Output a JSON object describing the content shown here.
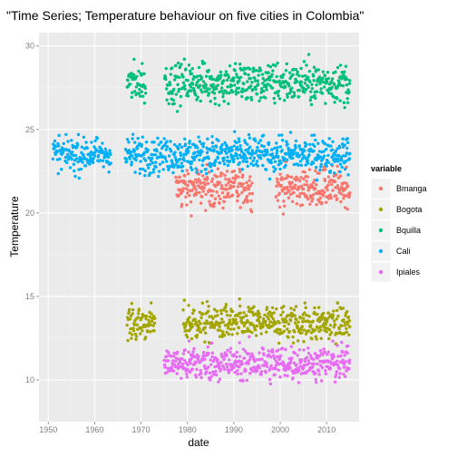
{
  "chart_data": {
    "type": "scatter",
    "title": "\"Time Series; Temperature behaviour on five cities in Colombia\"",
    "xlabel": "date",
    "ylabel": "Temperature",
    "xlim": [
      1948,
      2017
    ],
    "ylim": [
      7.5,
      30.8
    ],
    "x_ticks": [
      1950,
      1960,
      1970,
      1980,
      1990,
      2000,
      2010
    ],
    "y_ticks": [
      10,
      15,
      20,
      25,
      30
    ],
    "grid": true,
    "legend": {
      "title": "variable",
      "placement": "right"
    },
    "series": [
      {
        "name": "Bmanga",
        "color": "#F8766D",
        "x_range": [
          1977.5,
          2015
        ],
        "mean": 21.5,
        "spread": 0.55,
        "gaps": [
          [
            1994,
            1999
          ]
        ]
      },
      {
        "name": "Bogota",
        "color": "#A3A500",
        "x_range": [
          1967,
          2015
        ],
        "mean": 13.4,
        "spread": 0.5,
        "gaps": [
          [
            1973,
            1979
          ]
        ]
      },
      {
        "name": "Bquilla",
        "color": "#00BF7D",
        "x_range": [
          1967,
          2015
        ],
        "mean": 27.8,
        "spread": 0.6,
        "gaps": [
          [
            1971,
            1975
          ]
        ]
      },
      {
        "name": "Cali",
        "color": "#00B0F6",
        "x_range": [
          1951,
          2015
        ],
        "mean": 23.5,
        "spread": 0.5,
        "gaps": [
          [
            1963.5,
            1966.5
          ]
        ]
      },
      {
        "name": "Ipiales",
        "color": "#E76BF3",
        "x_range": [
          1975,
          2015
        ],
        "mean": 11.0,
        "spread": 0.5,
        "gaps": []
      }
    ]
  }
}
